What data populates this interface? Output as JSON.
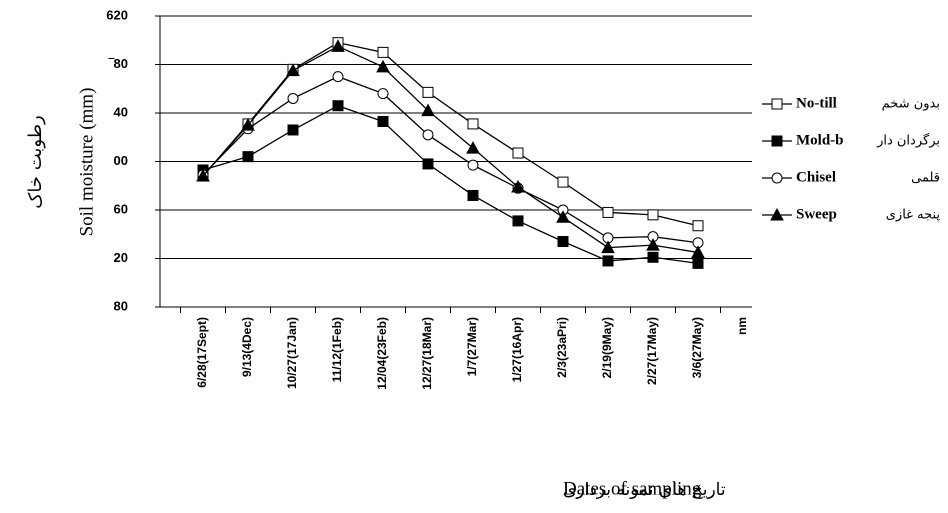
{
  "chart_data": {
    "type": "line",
    "y_label": "Soil moisture (mm)",
    "y_label_fa": "رطوبت خاک",
    "x_label": "Dates of sampling",
    "x_label_fa": "تاریخ های نمونه برداری",
    "categories": [
      "6/28(17Sept)",
      "9/13(4Dec)",
      "10/27(17Jan)",
      "11/12(1Feb)",
      "12/04(23Feb)",
      "12/27(18Mar)",
      "1/7(27Mar)",
      "1/27(16Apr)",
      "2/3(23aPri)",
      "2/19(9May)",
      "2/27(17May)",
      "3/6(27May)",
      "nm"
    ],
    "series": [
      {
        "name": "No-till",
        "name_fa": "بدون شخم",
        "color": "#000000",
        "marker": "square-open",
        "values": [
          488,
          531,
          576,
          598,
          590,
          557,
          531,
          507,
          483,
          458,
          456,
          447,
          null
        ]
      },
      {
        "name": "Mold-b",
        "name_fa": "برگردان دار",
        "color": "#000000",
        "marker": "square",
        "values": [
          493,
          504,
          526,
          546,
          533,
          498,
          472,
          451,
          434,
          418,
          421,
          416,
          null
        ]
      },
      {
        "name": "Chisel",
        "name_fa": "قلمی",
        "color": "#000000",
        "marker": "circle-open",
        "values": [
          489,
          527,
          552,
          570,
          556,
          522,
          497,
          478,
          460,
          437,
          438,
          433,
          null
        ]
      },
      {
        "name": "Sweep",
        "name_fa": "پنجه غازی",
        "color": "#000000",
        "marker": "triangle",
        "values": [
          488,
          530,
          575,
          595,
          578,
          542,
          511,
          479,
          454,
          429,
          431,
          425,
          null
        ]
      }
    ],
    "ylim": [
      380,
      620
    ],
    "yticks": [
      {
        "value": 380,
        "label": "80"
      },
      {
        "value": 420,
        "label": "20"
      },
      {
        "value": 460,
        "label": "60"
      },
      {
        "value": 500,
        "label": "00"
      },
      {
        "value": 540,
        "label": "40"
      },
      {
        "value": 580,
        "label": "‾80"
      },
      620
    ],
    "grid": true
  }
}
